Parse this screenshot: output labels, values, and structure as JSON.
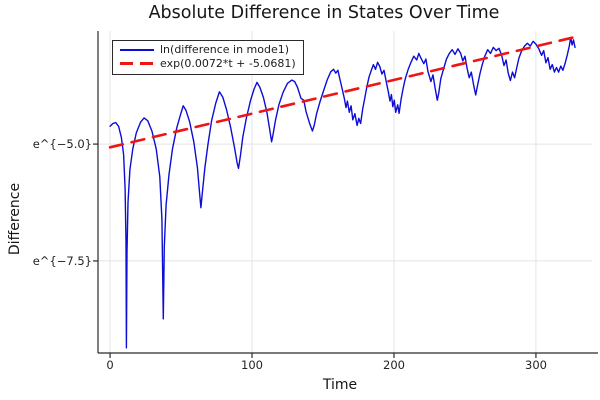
{
  "title": "Absolute Difference in States Over Time",
  "x_axis": {
    "label": "Time",
    "ticks": [
      {
        "label": "0",
        "value": 0
      },
      {
        "label": "100",
        "value": 100
      },
      {
        "label": "200",
        "value": 200
      },
      {
        "label": "300",
        "value": 300
      }
    ]
  },
  "y_axis": {
    "label": "Difference",
    "ticks": [
      {
        "label": "e^{−5.0}",
        "value": -5.0
      },
      {
        "label": "e^{−7.5}",
        "value": -7.5
      }
    ]
  },
  "legend": {
    "items": [
      {
        "label": "ln(difference in mode1)",
        "color": "#0d0dd6",
        "style": "solid"
      },
      {
        "label": "exp(0.0072*t + -5.0681)",
        "color": "#ee1515",
        "style": "dashed"
      }
    ]
  },
  "colors": {
    "background": "#ffffff",
    "grid": "#e4e4e4",
    "axis": "#2a2a2a",
    "series_blue": "#0d0dd6",
    "series_red": "#ee1515"
  },
  "chart_data": {
    "type": "line",
    "title": "Absolute Difference in States Over Time",
    "xlabel": "Time",
    "ylabel": "Difference",
    "xlim": [
      -8.5,
      339.5
    ],
    "ylim": [
      -9.47,
      -2.58
    ],
    "grid": true,
    "legend_position": "top-left",
    "y_scale_note": "y values are natural-log of difference; axis shows e^{v}",
    "series": [
      {
        "name": "ln(difference in mode1)",
        "color": "#0d0dd6",
        "style": "solid",
        "width": 1.4,
        "points": [
          [
            0,
            -4.62
          ],
          [
            2,
            -4.56
          ],
          [
            4,
            -4.54
          ],
          [
            6,
            -4.62
          ],
          [
            8,
            -4.86
          ],
          [
            9.5,
            -5.22
          ],
          [
            10.6,
            -5.95
          ],
          [
            11.2,
            -7.1
          ],
          [
            11.5,
            -9.36
          ],
          [
            11.9,
            -7.3
          ],
          [
            12.6,
            -6.25
          ],
          [
            14,
            -5.55
          ],
          [
            16,
            -5.1
          ],
          [
            18.5,
            -4.76
          ],
          [
            21.5,
            -4.53
          ],
          [
            24,
            -4.44
          ],
          [
            26.5,
            -4.5
          ],
          [
            29.5,
            -4.72
          ],
          [
            32.5,
            -5.1
          ],
          [
            35,
            -5.7
          ],
          [
            36.5,
            -6.6
          ],
          [
            37.5,
            -8.74
          ],
          [
            38.2,
            -7.2
          ],
          [
            39.5,
            -6.3
          ],
          [
            41.5,
            -5.65
          ],
          [
            44,
            -5.1
          ],
          [
            47,
            -4.65
          ],
          [
            49.8,
            -4.35
          ],
          [
            51.5,
            -4.18
          ],
          [
            53.5,
            -4.28
          ],
          [
            56,
            -4.52
          ],
          [
            59,
            -4.95
          ],
          [
            61.5,
            -5.5
          ],
          [
            63.2,
            -6.1
          ],
          [
            64,
            -6.36
          ],
          [
            65,
            -6.05
          ],
          [
            66.8,
            -5.5
          ],
          [
            69,
            -5.0
          ],
          [
            71.5,
            -4.5
          ],
          [
            74.5,
            -4.12
          ],
          [
            77,
            -3.88
          ],
          [
            79.5,
            -4.0
          ],
          [
            82,
            -4.26
          ],
          [
            85,
            -4.65
          ],
          [
            87.5,
            -5.05
          ],
          [
            89.5,
            -5.4
          ],
          [
            90.5,
            -5.52
          ],
          [
            91.8,
            -5.25
          ],
          [
            93.5,
            -4.85
          ],
          [
            96,
            -4.45
          ],
          [
            99,
            -4.06
          ],
          [
            101.5,
            -3.82
          ],
          [
            103.5,
            -3.68
          ],
          [
            105.5,
            -3.78
          ],
          [
            108,
            -4.0
          ],
          [
            110.5,
            -4.32
          ],
          [
            112.5,
            -4.7
          ],
          [
            113.8,
            -4.95
          ],
          [
            114.8,
            -4.8
          ],
          [
            116.5,
            -4.5
          ],
          [
            119,
            -4.15
          ],
          [
            122,
            -3.88
          ],
          [
            125,
            -3.7
          ],
          [
            128,
            -3.63
          ],
          [
            130,
            -3.66
          ],
          [
            132,
            -3.78
          ],
          [
            134.5,
            -4.02
          ],
          [
            136.5,
            -4.06
          ],
          [
            138,
            -4.3
          ],
          [
            140.5,
            -4.55
          ],
          [
            142.5,
            -4.72
          ],
          [
            143.8,
            -4.6
          ],
          [
            145.5,
            -4.35
          ],
          [
            148,
            -4.08
          ],
          [
            150.5,
            -3.85
          ],
          [
            153,
            -3.62
          ],
          [
            155.5,
            -3.45
          ],
          [
            157.5,
            -3.4
          ],
          [
            159,
            -3.48
          ],
          [
            160.5,
            -3.42
          ],
          [
            162,
            -3.62
          ],
          [
            163.5,
            -3.82
          ],
          [
            165,
            -4.02
          ],
          [
            166.2,
            -4.22
          ],
          [
            167.2,
            -4.08
          ],
          [
            168.5,
            -4.32
          ],
          [
            169.8,
            -4.18
          ],
          [
            171,
            -4.48
          ],
          [
            172.5,
            -4.35
          ],
          [
            174,
            -4.6
          ],
          [
            175.2,
            -4.45
          ],
          [
            176.5,
            -4.56
          ],
          [
            178,
            -4.25
          ],
          [
            179.5,
            -4.0
          ],
          [
            181,
            -3.76
          ],
          [
            182.5,
            -3.56
          ],
          [
            184,
            -3.42
          ],
          [
            185.5,
            -3.3
          ],
          [
            187,
            -3.4
          ],
          [
            188.5,
            -3.25
          ],
          [
            190,
            -3.34
          ],
          [
            191.5,
            -3.5
          ],
          [
            193,
            -3.42
          ],
          [
            194.5,
            -3.66
          ],
          [
            196,
            -3.88
          ],
          [
            197.2,
            -4.08
          ],
          [
            198.2,
            -3.94
          ],
          [
            199.2,
            -4.2
          ],
          [
            200.2,
            -4.06
          ],
          [
            201.2,
            -4.32
          ],
          [
            202.6,
            -4.16
          ],
          [
            203.6,
            -4.34
          ],
          [
            205,
            -4.04
          ],
          [
            206.5,
            -3.8
          ],
          [
            208,
            -3.6
          ],
          [
            210,
            -3.4
          ],
          [
            212,
            -3.25
          ],
          [
            214,
            -3.12
          ],
          [
            216,
            -3.2
          ],
          [
            217.5,
            -3.06
          ],
          [
            219,
            -3.16
          ],
          [
            221,
            -3.28
          ],
          [
            222.5,
            -3.18
          ],
          [
            224,
            -3.45
          ],
          [
            226,
            -3.66
          ],
          [
            227.5,
            -3.52
          ],
          [
            229,
            -3.8
          ],
          [
            230.5,
            -4.06
          ],
          [
            231.6,
            -3.9
          ],
          [
            233,
            -3.6
          ],
          [
            235,
            -3.38
          ],
          [
            237,
            -3.18
          ],
          [
            239,
            -3.06
          ],
          [
            241,
            -2.98
          ],
          [
            243,
            -3.08
          ],
          [
            245,
            -2.96
          ],
          [
            247,
            -3.06
          ],
          [
            248.5,
            -3.22
          ],
          [
            250,
            -3.12
          ],
          [
            251.5,
            -3.38
          ],
          [
            253,
            -3.58
          ],
          [
            254.5,
            -3.46
          ],
          [
            256,
            -3.72
          ],
          [
            257.6,
            -3.95
          ],
          [
            258.8,
            -3.76
          ],
          [
            260.5,
            -3.5
          ],
          [
            262,
            -3.32
          ],
          [
            264,
            -3.12
          ],
          [
            266,
            -2.98
          ],
          [
            268,
            -3.06
          ],
          [
            270,
            -2.93
          ],
          [
            272,
            -3.0
          ],
          [
            274,
            -2.95
          ],
          [
            276,
            -3.12
          ],
          [
            277.5,
            -3.32
          ],
          [
            279,
            -3.2
          ],
          [
            280.5,
            -3.48
          ],
          [
            282,
            -3.64
          ],
          [
            283.5,
            -3.46
          ],
          [
            285,
            -3.58
          ],
          [
            286.5,
            -3.36
          ],
          [
            288,
            -3.16
          ],
          [
            290,
            -3.0
          ],
          [
            292,
            -2.9
          ],
          [
            294,
            -2.84
          ],
          [
            296,
            -2.9
          ],
          [
            298,
            -2.8
          ],
          [
            300,
            -2.86
          ],
          [
            302,
            -2.96
          ],
          [
            304,
            -3.1
          ],
          [
            305.5,
            -3.0
          ],
          [
            307,
            -3.26
          ],
          [
            308.5,
            -3.15
          ],
          [
            310,
            -3.4
          ],
          [
            311.5,
            -3.3
          ],
          [
            313,
            -3.46
          ],
          [
            314.5,
            -3.36
          ],
          [
            316,
            -3.46
          ],
          [
            317.5,
            -3.33
          ],
          [
            319,
            -3.42
          ],
          [
            320.5,
            -3.28
          ],
          [
            322,
            -3.1
          ],
          [
            323.5,
            -2.9
          ],
          [
            324.5,
            -2.72
          ],
          [
            325.5,
            -2.88
          ],
          [
            326.5,
            -2.77
          ],
          [
            327.5,
            -2.93
          ]
        ]
      },
      {
        "name": "exp(0.0072*t + -5.0681)",
        "color": "#ee1515",
        "style": "dashed",
        "width": 2.6,
        "fit": {
          "slope": 0.0072,
          "intercept": -5.0681
        },
        "points": [
          [
            0,
            -5.0681
          ],
          [
            330,
            -2.6921
          ]
        ]
      }
    ]
  }
}
